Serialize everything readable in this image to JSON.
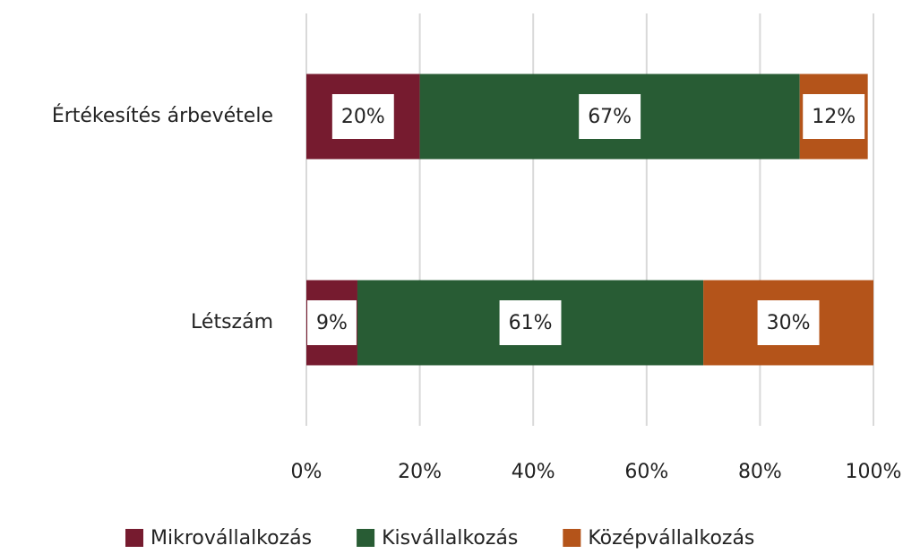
{
  "chart_data": {
    "type": "stacked_barh",
    "categories": [
      "Értékesítés árbevétele",
      "Létszám"
    ],
    "series": [
      {
        "name": "Mikrovállalkozás",
        "color": "#761b2f",
        "values": [
          20,
          9
        ],
        "value_labels": [
          "20%",
          "9%"
        ]
      },
      {
        "name": "Kisvállalkozás",
        "color": "#285c34",
        "values": [
          67,
          61
        ],
        "value_labels": [
          "67%",
          "61%"
        ]
      },
      {
        "name": "Középvállalkozás",
        "color": "#b4541a",
        "values": [
          12,
          30
        ],
        "value_labels": [
          "12%",
          "30%"
        ]
      }
    ],
    "xlim": [
      0,
      100
    ],
    "xticks": [
      {
        "value": 0,
        "label": "0%"
      },
      {
        "value": 20,
        "label": "20%"
      },
      {
        "value": 40,
        "label": "40%"
      },
      {
        "value": 60,
        "label": "60%"
      },
      {
        "value": 80,
        "label": "80%"
      },
      {
        "value": 100,
        "label": "100%"
      }
    ],
    "grid": true,
    "legend": "bottom"
  }
}
